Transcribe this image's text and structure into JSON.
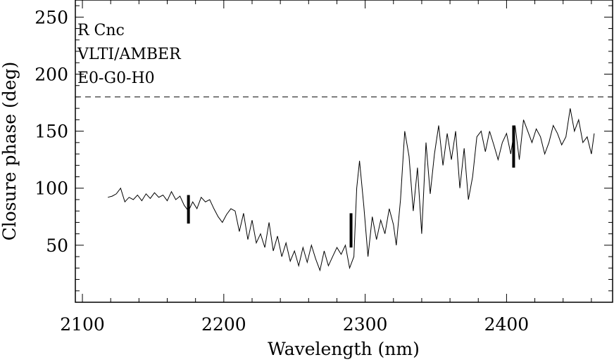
{
  "chart_data": {
    "type": "line",
    "title": "",
    "xlabel": "Wavelength (nm)",
    "ylabel": "Closure phase (deg)",
    "xlim": [
      2095,
      2475
    ],
    "ylim": [
      0,
      265
    ],
    "xticks": [
      2100,
      2200,
      2300,
      2400
    ],
    "yticks": [
      50,
      100,
      150,
      200,
      250
    ],
    "grid": false,
    "annotations": [
      "R Cnc",
      "VLTI/AMBER",
      "E0-G0-H0"
    ],
    "reference_line": {
      "y": 180,
      "style": "dashed"
    },
    "error_bars": [
      {
        "x": 2175,
        "low": 69,
        "high": 94
      },
      {
        "x": 2290,
        "low": 48,
        "high": 78
      },
      {
        "x": 2405,
        "low": 118,
        "high": 155
      }
    ],
    "series": [
      {
        "x": [
          2118,
          2121,
          2124,
          2127,
          2130,
          2133,
          2136,
          2139,
          2142,
          2145,
          2148,
          2151,
          2154,
          2157,
          2160,
          2163,
          2166,
          2169,
          2172,
          2175,
          2178,
          2181,
          2184,
          2187,
          2190,
          2193,
          2196,
          2199,
          2202,
          2205,
          2208,
          2211,
          2214,
          2217,
          2220,
          2223,
          2226,
          2229,
          2232,
          2235,
          2238,
          2241,
          2244,
          2247,
          2250,
          2253,
          2256,
          2259,
          2262,
          2265,
          2268,
          2271,
          2274,
          2277,
          2280,
          2283,
          2286,
          2289,
          2292,
          2294,
          2296,
          2299,
          2302,
          2305,
          2308,
          2311,
          2314,
          2317,
          2320,
          2322,
          2325,
          2328,
          2331,
          2334,
          2337,
          2340,
          2343,
          2346,
          2349,
          2352,
          2355,
          2358,
          2361,
          2364,
          2367,
          2370,
          2373,
          2376,
          2379,
          2382,
          2385,
          2388,
          2391,
          2394,
          2397,
          2400,
          2403,
          2406,
          2409,
          2412,
          2415,
          2418,
          2421,
          2424,
          2427,
          2430,
          2433,
          2436,
          2439,
          2442,
          2445,
          2448,
          2451,
          2454,
          2457,
          2460,
          2462
        ],
        "values": [
          92,
          93,
          95,
          100,
          88,
          92,
          90,
          94,
          89,
          95,
          91,
          96,
          92,
          94,
          89,
          97,
          90,
          93,
          85,
          80,
          88,
          82,
          92,
          88,
          90,
          82,
          75,
          70,
          77,
          82,
          80,
          62,
          78,
          55,
          72,
          52,
          60,
          48,
          70,
          45,
          58,
          40,
          52,
          36,
          45,
          32,
          48,
          35,
          50,
          38,
          28,
          45,
          32,
          40,
          48,
          42,
          50,
          30,
          40,
          100,
          124,
          85,
          40,
          75,
          55,
          72,
          60,
          82,
          68,
          50,
          90,
          150,
          128,
          80,
          118,
          60,
          140,
          95,
          130,
          155,
          120,
          148,
          125,
          150,
          100,
          135,
          90,
          110,
          145,
          150,
          132,
          150,
          138,
          125,
          140,
          148,
          130,
          155,
          125,
          160,
          150,
          140,
          152,
          145,
          130,
          140,
          155,
          148,
          138,
          145,
          170,
          150,
          160,
          140,
          145,
          130,
          148
        ]
      }
    ]
  }
}
